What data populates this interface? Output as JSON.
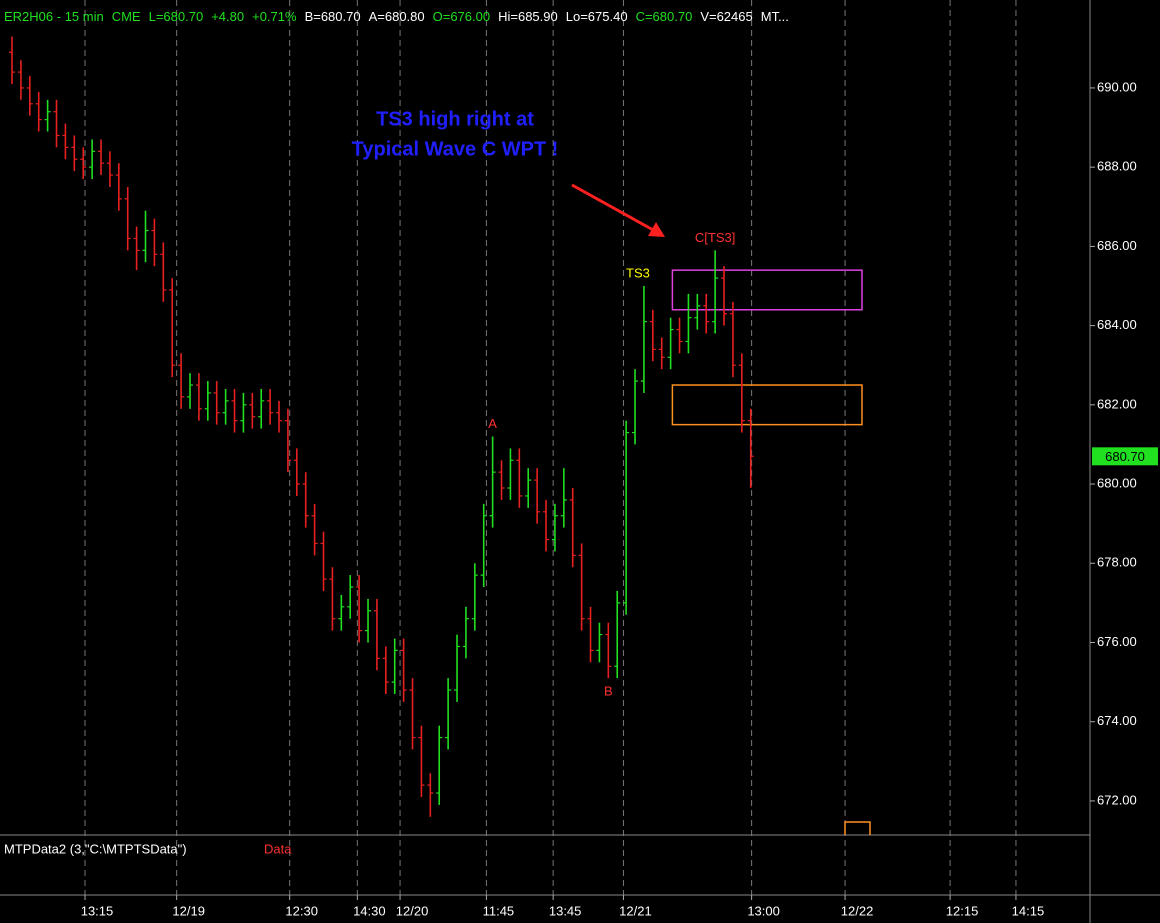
{
  "header": [
    {
      "text": "ER2H06 - 15 min",
      "color": "#20e020"
    },
    {
      "text": "CME",
      "color": "#20e020"
    },
    {
      "text": "L=680.70",
      "color": "#20e020"
    },
    {
      "text": "+4.80",
      "color": "#20e020"
    },
    {
      "text": "+0.71%",
      "color": "#20e020"
    },
    {
      "text": "B=680.70",
      "color": "#ffffff"
    },
    {
      "text": "A=680.80",
      "color": "#ffffff"
    },
    {
      "text": "O=676.00",
      "color": "#20e020"
    },
    {
      "text": "Hi=685.90",
      "color": "#ffffff"
    },
    {
      "text": "Lo=675.40",
      "color": "#ffffff"
    },
    {
      "text": "C=680.70",
      "color": "#20e020"
    },
    {
      "text": "V=62465",
      "color": "#ffffff"
    },
    {
      "text": "MT...",
      "color": "#ffffff"
    }
  ],
  "note": [
    "TS3 high right at",
    "Typical Wave C WPT !"
  ],
  "indicator": {
    "name": "MTPData2 (3,\"C:\\MTPTSData\")",
    "series": "Data"
  },
  "chart_data": {
    "type": "ohlc",
    "up_color": "#20e020",
    "down_color": "#e82020",
    "xlim": [
      -1.35,
      121.12
    ],
    "xticks": [
      {
        "value": 8.2,
        "label": "13:15"
      },
      {
        "value": 18.5,
        "label": "12/19"
      },
      {
        "value": 31.2,
        "label": "12:30"
      },
      {
        "value": 38.8,
        "label": "14:30"
      },
      {
        "value": 43.6,
        "label": "12/20"
      },
      {
        "value": 53.3,
        "label": "11:45"
      },
      {
        "value": 60.8,
        "label": "13:45"
      },
      {
        "value": 68.7,
        "label": "12/21"
      },
      {
        "value": 83.1,
        "label": "13:00"
      },
      {
        "value": 93.6,
        "label": "12/22"
      },
      {
        "value": 105.4,
        "label": "12:15"
      },
      {
        "value": 112.8,
        "label": "14:15"
      }
    ],
    "xgrid": true,
    "ylim": [
      671.14,
      692.22
    ],
    "yticks": [
      {
        "value": 672,
        "label": "672.00"
      },
      {
        "value": 674,
        "label": "674.00"
      },
      {
        "value": 676,
        "label": "676.00"
      },
      {
        "value": 678,
        "label": "678.00"
      },
      {
        "value": 680,
        "label": "680.00"
      },
      {
        "value": 682,
        "label": "682.00"
      },
      {
        "value": 684,
        "label": "684.00"
      },
      {
        "value": 686,
        "label": "686.00"
      },
      {
        "value": 688,
        "label": "688.00"
      },
      {
        "value": 690,
        "label": "690.00"
      }
    ],
    "open": [
      690.9,
      690.4,
      690.0,
      689.6,
      689.2,
      689.4,
      688.8,
      688.5,
      688.2,
      688.0,
      688.4,
      688.1,
      687.8,
      687.2,
      686.2,
      685.9,
      686.4,
      685.8,
      684.9,
      683.0,
      682.2,
      682.5,
      681.9,
      682.3,
      681.8,
      682.1,
      681.6,
      682.0,
      681.7,
      682.1,
      681.8,
      681.6,
      680.6,
      680.0,
      679.2,
      678.5,
      677.6,
      676.6,
      676.9,
      677.4,
      676.3,
      676.8,
      675.6,
      675.0,
      675.8,
      674.8,
      673.6,
      672.4,
      672.2,
      673.6,
      674.8,
      675.9,
      676.6,
      677.7,
      679.2,
      680.3,
      679.9,
      680.6,
      679.7,
      680.1,
      679.3,
      678.6,
      679.2,
      679.6,
      678.2,
      676.6,
      675.8,
      676.2,
      675.4,
      677.0,
      681.3,
      682.6,
      684.1,
      683.4,
      683.2,
      683.9,
      683.6,
      684.2,
      684.5,
      684.1,
      685.2,
      684.3,
      683.0,
      681.6
    ],
    "high": [
      691.3,
      690.7,
      690.3,
      689.9,
      689.7,
      689.7,
      689.1,
      688.8,
      688.5,
      688.7,
      688.7,
      688.4,
      688.1,
      687.5,
      686.5,
      686.9,
      686.7,
      686.1,
      685.2,
      683.3,
      682.8,
      682.8,
      682.6,
      682.6,
      682.4,
      682.4,
      682.3,
      682.3,
      682.4,
      682.4,
      682.1,
      681.9,
      680.9,
      680.3,
      679.5,
      678.8,
      677.9,
      677.2,
      677.7,
      677.7,
      677.1,
      677.1,
      675.9,
      676.1,
      676.1,
      675.1,
      673.9,
      672.7,
      673.9,
      675.1,
      676.2,
      676.9,
      678.0,
      679.5,
      681.2,
      680.6,
      680.9,
      680.9,
      680.4,
      680.4,
      679.6,
      679.5,
      680.4,
      679.9,
      678.5,
      676.9,
      676.5,
      676.5,
      677.3,
      681.6,
      682.9,
      685.0,
      684.4,
      683.7,
      684.2,
      684.2,
      684.8,
      684.8,
      684.8,
      685.9,
      685.5,
      684.6,
      683.3,
      681.9
    ],
    "low": [
      690.1,
      689.7,
      689.3,
      688.9,
      688.9,
      688.5,
      688.2,
      687.9,
      687.7,
      687.7,
      687.8,
      687.5,
      686.9,
      685.9,
      685.4,
      685.6,
      685.5,
      684.6,
      682.7,
      681.9,
      681.9,
      681.6,
      681.6,
      681.5,
      681.5,
      681.3,
      681.3,
      681.4,
      681.4,
      681.5,
      681.3,
      680.3,
      679.7,
      678.9,
      678.2,
      677.3,
      676.3,
      676.3,
      676.6,
      676.0,
      676.0,
      675.3,
      674.7,
      674.7,
      674.5,
      673.3,
      672.1,
      671.6,
      671.9,
      673.3,
      674.5,
      675.6,
      676.3,
      677.4,
      678.9,
      679.6,
      679.6,
      679.4,
      679.4,
      679.0,
      678.3,
      678.3,
      678.9,
      677.9,
      676.3,
      675.5,
      675.5,
      675.1,
      675.1,
      676.7,
      681.0,
      682.3,
      683.1,
      682.9,
      682.9,
      683.3,
      683.3,
      683.9,
      683.8,
      683.8,
      684.0,
      682.7,
      681.3,
      679.9
    ],
    "close": [
      690.4,
      690.0,
      689.6,
      689.2,
      689.4,
      688.8,
      688.5,
      688.2,
      688.0,
      688.4,
      688.1,
      687.8,
      687.2,
      686.2,
      685.9,
      686.4,
      685.8,
      684.9,
      683.0,
      682.2,
      682.5,
      681.9,
      682.3,
      681.8,
      682.1,
      681.6,
      682.0,
      681.7,
      682.1,
      681.8,
      681.6,
      680.6,
      680.0,
      679.2,
      678.5,
      677.6,
      676.6,
      676.9,
      677.4,
      676.3,
      676.8,
      675.6,
      675.0,
      675.8,
      674.8,
      673.6,
      672.4,
      672.2,
      673.6,
      674.8,
      675.9,
      676.6,
      677.7,
      679.2,
      680.3,
      679.9,
      680.6,
      679.7,
      680.1,
      679.3,
      678.6,
      679.2,
      679.6,
      678.2,
      676.6,
      675.8,
      676.2,
      675.4,
      677.0,
      681.3,
      682.6,
      684.1,
      683.4,
      683.2,
      683.9,
      683.6,
      684.2,
      684.5,
      684.1,
      685.2,
      684.3,
      683.0,
      681.6,
      680.7
    ],
    "annotations": [
      {
        "text": "A",
        "color": "#ff3030"
      },
      {
        "text": "B",
        "color": "#ff3030"
      },
      {
        "text": "TS3",
        "color": "#ffff00"
      },
      {
        "text": "C[TS3]",
        "color": "#ff3030"
      }
    ],
    "zones": [
      {
        "low": 684.4,
        "high": 685.4,
        "x0": 74.2,
        "x1": 95.5,
        "color": "#e040e0"
      },
      {
        "low": 681.5,
        "high": 682.5,
        "x0": 74.2,
        "x1": 95.5,
        "color": "#ff9020"
      }
    ],
    "last_price": {
      "value": 680.7,
      "label": "680.70",
      "color": "#20e020"
    }
  }
}
